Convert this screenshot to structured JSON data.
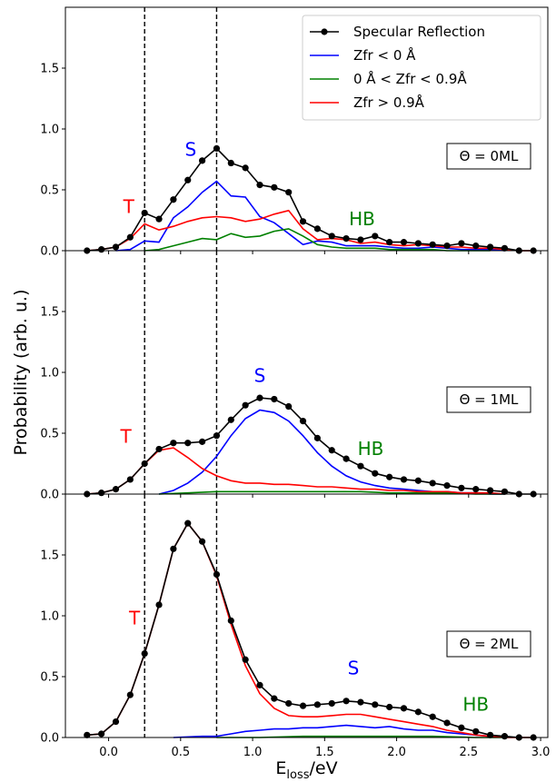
{
  "chart_data": {
    "type": "line",
    "xlabel_main": "E",
    "xlabel_sub": "loss",
    "xlabel_unit": "/eV",
    "ylabel": "Probability (arb. u.)",
    "xlim": [
      -0.3,
      3.05
    ],
    "ylim": [
      0,
      2.0
    ],
    "xticks": [
      "0.0",
      "0.5",
      "1.0",
      "1.5",
      "2.0",
      "2.5",
      "3.0"
    ],
    "xtick_values": [
      0,
      0.5,
      1.0,
      1.5,
      2.0,
      2.5,
      3.0
    ],
    "yticks": [
      "0.0",
      "0.5",
      "1.0",
      "1.5"
    ],
    "ytick_values": [
      0,
      0.5,
      1.0,
      1.5
    ],
    "vlines": [
      0.25,
      0.75
    ],
    "colors": {
      "specular": "#000000",
      "zneg": "#0000ff",
      "zmid": "#008000",
      "zpos": "#ff0000"
    },
    "legend": {
      "position": "top-right",
      "entries": [
        "Specular Reflection",
        "Zfr < 0 Å",
        "0 Å < Zfr < 0.9Å",
        "Zfr > 0.9Å"
      ]
    },
    "panels": [
      {
        "coverage": "Θ = 0ML",
        "annotations": [
          {
            "text": "T",
            "x": 0.14,
            "y": 0.31,
            "color": "#ff0000"
          },
          {
            "text": "S",
            "x": 0.57,
            "y": 0.78,
            "color": "#0000ff"
          },
          {
            "text": "HB",
            "x": 1.76,
            "y": 0.21,
            "color": "#008000"
          }
        ],
        "series": [
          {
            "name": "Specular Reflection",
            "x": [
              -0.15,
              -0.05,
              0.05,
              0.15,
              0.25,
              0.35,
              0.45,
              0.55,
              0.65,
              0.75,
              0.85,
              0.95,
              1.05,
              1.15,
              1.25,
              1.35,
              1.45,
              1.55,
              1.65,
              1.75,
              1.85,
              1.95,
              2.05,
              2.15,
              2.25,
              2.35,
              2.45,
              2.55,
              2.65,
              2.75,
              2.85,
              2.95
            ],
            "y": [
              0.0,
              0.01,
              0.03,
              0.11,
              0.31,
              0.26,
              0.42,
              0.58,
              0.74,
              0.84,
              0.72,
              0.68,
              0.54,
              0.52,
              0.48,
              0.24,
              0.18,
              0.12,
              0.1,
              0.09,
              0.12,
              0.07,
              0.07,
              0.06,
              0.05,
              0.04,
              0.06,
              0.04,
              0.03,
              0.02,
              0.0,
              0.0
            ]
          },
          {
            "name": "Zfr < 0 Å",
            "x": [
              0.05,
              0.15,
              0.25,
              0.35,
              0.45,
              0.55,
              0.65,
              0.75,
              0.85,
              0.95,
              1.05,
              1.15,
              1.25,
              1.35,
              1.45,
              1.55,
              1.65,
              1.75,
              1.85,
              1.95,
              2.05,
              2.15,
              2.25,
              2.35,
              2.45,
              2.55,
              2.65,
              2.75
            ],
            "y": [
              0.0,
              0.01,
              0.08,
              0.07,
              0.27,
              0.36,
              0.48,
              0.57,
              0.45,
              0.44,
              0.28,
              0.23,
              0.14,
              0.05,
              0.08,
              0.07,
              0.04,
              0.04,
              0.04,
              0.03,
              0.02,
              0.02,
              0.03,
              0.02,
              0.01,
              0.01,
              0.01,
              0.0
            ]
          },
          {
            "name": "0 Å < Zfr < 0.9Å",
            "x": [
              0.25,
              0.35,
              0.45,
              0.55,
              0.65,
              0.75,
              0.85,
              0.95,
              1.05,
              1.15,
              1.25,
              1.35,
              1.45,
              1.55,
              1.65,
              1.75,
              1.85,
              1.95,
              2.05,
              2.15,
              2.25,
              2.35,
              2.45,
              2.55,
              2.65
            ],
            "y": [
              0.0,
              0.01,
              0.04,
              0.07,
              0.1,
              0.09,
              0.14,
              0.11,
              0.12,
              0.16,
              0.18,
              0.12,
              0.05,
              0.03,
              0.02,
              0.02,
              0.02,
              0.01,
              0.01,
              0.01,
              0.01,
              0.0,
              0.0,
              0.0,
              0.0
            ]
          },
          {
            "name": "Zfr > 0.9Å",
            "x": [
              -0.15,
              -0.05,
              0.05,
              0.15,
              0.25,
              0.35,
              0.45,
              0.55,
              0.65,
              0.75,
              0.85,
              0.95,
              1.05,
              1.15,
              1.25,
              1.35,
              1.45,
              1.55,
              1.65,
              1.75,
              1.85,
              1.95,
              2.05,
              2.15,
              2.25,
              2.35,
              2.45,
              2.55,
              2.65,
              2.75,
              2.85,
              2.95
            ],
            "y": [
              0.0,
              0.01,
              0.03,
              0.1,
              0.22,
              0.17,
              0.2,
              0.24,
              0.27,
              0.28,
              0.27,
              0.24,
              0.26,
              0.3,
              0.33,
              0.18,
              0.09,
              0.1,
              0.09,
              0.06,
              0.07,
              0.05,
              0.04,
              0.05,
              0.04,
              0.03,
              0.03,
              0.02,
              0.02,
              0.01,
              0.0,
              0.0
            ]
          }
        ]
      },
      {
        "coverage": "Θ = 1ML",
        "annotations": [
          {
            "text": "T",
            "x": 0.12,
            "y": 0.42,
            "color": "#ff0000"
          },
          {
            "text": "S",
            "x": 1.05,
            "y": 0.92,
            "color": "#0000ff"
          },
          {
            "text": "HB",
            "x": 1.82,
            "y": 0.32,
            "color": "#008000"
          }
        ],
        "series": [
          {
            "name": "Specular Reflection",
            "x": [
              -0.15,
              -0.05,
              0.05,
              0.15,
              0.25,
              0.35,
              0.45,
              0.55,
              0.65,
              0.75,
              0.85,
              0.95,
              1.05,
              1.15,
              1.25,
              1.35,
              1.45,
              1.55,
              1.65,
              1.75,
              1.85,
              1.95,
              2.05,
              2.15,
              2.25,
              2.35,
              2.45,
              2.55,
              2.65,
              2.75,
              2.85,
              2.95
            ],
            "y": [
              0.0,
              0.01,
              0.04,
              0.12,
              0.25,
              0.37,
              0.42,
              0.42,
              0.43,
              0.48,
              0.61,
              0.73,
              0.79,
              0.78,
              0.72,
              0.6,
              0.46,
              0.36,
              0.29,
              0.23,
              0.17,
              0.14,
              0.12,
              0.11,
              0.09,
              0.07,
              0.05,
              0.04,
              0.03,
              0.02,
              0.0,
              0.0
            ]
          },
          {
            "name": "Zfr < 0 Å",
            "x": [
              0.35,
              0.45,
              0.55,
              0.65,
              0.75,
              0.85,
              0.95,
              1.05,
              1.15,
              1.25,
              1.35,
              1.45,
              1.55,
              1.65,
              1.75,
              1.85,
              1.95,
              2.05,
              2.15,
              2.25,
              2.35,
              2.45,
              2.55,
              2.65,
              2.75
            ],
            "y": [
              0.0,
              0.03,
              0.09,
              0.18,
              0.31,
              0.48,
              0.62,
              0.69,
              0.67,
              0.6,
              0.48,
              0.34,
              0.23,
              0.15,
              0.1,
              0.07,
              0.05,
              0.04,
              0.03,
              0.02,
              0.02,
              0.01,
              0.01,
              0.0,
              0.0
            ]
          },
          {
            "name": "0 Å < Zfr < 0.9Å",
            "x": [
              0.35,
              0.55,
              0.75,
              0.95,
              1.15,
              1.35,
              1.55,
              1.75,
              1.95,
              2.15,
              2.35,
              2.55,
              2.75
            ],
            "y": [
              0.0,
              0.01,
              0.02,
              0.02,
              0.02,
              0.02,
              0.02,
              0.02,
              0.01,
              0.01,
              0.01,
              0.0,
              0.0
            ]
          },
          {
            "name": "Zfr > 0.9Å",
            "x": [
              -0.15,
              -0.05,
              0.05,
              0.15,
              0.25,
              0.35,
              0.45,
              0.55,
              0.65,
              0.75,
              0.85,
              0.95,
              1.05,
              1.15,
              1.25,
              1.35,
              1.45,
              1.55,
              1.65,
              1.75,
              1.85,
              1.95,
              2.05,
              2.15,
              2.25,
              2.35,
              2.45,
              2.55,
              2.65,
              2.75
            ],
            "y": [
              0.0,
              0.01,
              0.04,
              0.12,
              0.25,
              0.36,
              0.38,
              0.3,
              0.21,
              0.15,
              0.11,
              0.09,
              0.09,
              0.08,
              0.08,
              0.07,
              0.06,
              0.06,
              0.05,
              0.04,
              0.04,
              0.03,
              0.03,
              0.02,
              0.02,
              0.02,
              0.01,
              0.01,
              0.01,
              0.0
            ]
          }
        ]
      },
      {
        "coverage": "Θ = 2ML",
        "annotations": [
          {
            "text": "T",
            "x": 0.18,
            "y": 0.93,
            "color": "#ff0000"
          },
          {
            "text": "S",
            "x": 1.7,
            "y": 0.52,
            "color": "#0000ff"
          },
          {
            "text": "HB",
            "x": 2.55,
            "y": 0.22,
            "color": "#008000"
          }
        ],
        "series": [
          {
            "name": "Specular Reflection",
            "x": [
              -0.15,
              -0.05,
              0.05,
              0.15,
              0.25,
              0.35,
              0.45,
              0.55,
              0.65,
              0.75,
              0.85,
              0.95,
              1.05,
              1.15,
              1.25,
              1.35,
              1.45,
              1.55,
              1.65,
              1.75,
              1.85,
              1.95,
              2.05,
              2.15,
              2.25,
              2.35,
              2.45,
              2.55,
              2.65,
              2.75,
              2.85,
              2.95
            ],
            "y": [
              0.02,
              0.03,
              0.13,
              0.35,
              0.69,
              1.09,
              1.55,
              1.76,
              1.61,
              1.34,
              0.96,
              0.64,
              0.43,
              0.32,
              0.28,
              0.26,
              0.27,
              0.28,
              0.3,
              0.29,
              0.27,
              0.25,
              0.24,
              0.21,
              0.17,
              0.12,
              0.08,
              0.05,
              0.02,
              0.01,
              0.0,
              0.0
            ]
          },
          {
            "name": "Zfr < 0 Å",
            "x": [
              0.45,
              0.65,
              0.75,
              0.85,
              0.95,
              1.05,
              1.15,
              1.25,
              1.35,
              1.45,
              1.55,
              1.65,
              1.75,
              1.85,
              1.95,
              2.05,
              2.15,
              2.25,
              2.35,
              2.45,
              2.55,
              2.65,
              2.75
            ],
            "y": [
              0.0,
              0.01,
              0.01,
              0.03,
              0.05,
              0.06,
              0.07,
              0.07,
              0.08,
              0.08,
              0.09,
              0.1,
              0.09,
              0.08,
              0.09,
              0.07,
              0.06,
              0.06,
              0.04,
              0.03,
              0.02,
              0.01,
              0.0
            ]
          },
          {
            "name": "0 Å < Zfr < 0.9Å",
            "x": [
              0.75,
              1.05,
              1.35,
              1.65,
              1.95,
              2.25,
              2.55,
              2.75
            ],
            "y": [
              0.0,
              0.0,
              0.01,
              0.01,
              0.01,
              0.01,
              0.0,
              0.0
            ]
          },
          {
            "name": "Zfr > 0.9Å",
            "x": [
              -0.15,
              -0.05,
              0.05,
              0.15,
              0.25,
              0.35,
              0.45,
              0.55,
              0.65,
              0.75,
              0.85,
              0.95,
              1.05,
              1.15,
              1.25,
              1.35,
              1.45,
              1.55,
              1.65,
              1.75,
              1.85,
              1.95,
              2.05,
              2.15,
              2.25,
              2.35,
              2.45,
              2.55,
              2.65,
              2.75,
              2.85,
              2.95
            ],
            "y": [
              0.02,
              0.03,
              0.13,
              0.35,
              0.69,
              1.09,
              1.55,
              1.76,
              1.61,
              1.33,
              0.93,
              0.59,
              0.36,
              0.24,
              0.18,
              0.17,
              0.17,
              0.18,
              0.19,
              0.19,
              0.17,
              0.15,
              0.13,
              0.11,
              0.09,
              0.06,
              0.04,
              0.02,
              0.01,
              0.0,
              0.0,
              0.0
            ]
          }
        ]
      }
    ]
  }
}
